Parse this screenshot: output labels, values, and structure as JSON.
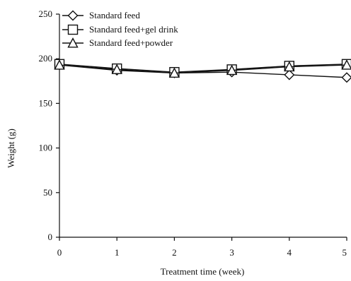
{
  "chart_data": {
    "type": "line",
    "title": "",
    "xlabel": "Treatment time (week)",
    "ylabel": "Weight (g)",
    "x": [
      0,
      1,
      2,
      3,
      4,
      5
    ],
    "xlim": [
      0,
      5
    ],
    "ylim": [
      0,
      250
    ],
    "x_ticks": [
      "0",
      "1",
      "2",
      "3",
      "4",
      "5"
    ],
    "y_ticks": [
      "0",
      "50",
      "100",
      "150",
      "200",
      "250"
    ],
    "grid": false,
    "legend_position": "top-left",
    "colors": {
      "series": "#111111",
      "axis": "#111111",
      "marker_fill": "#ffffff"
    },
    "series": [
      {
        "name": "Standard feed",
        "marker": "diamond",
        "values": [
          193,
          187,
          184,
          185,
          182,
          179
        ]
      },
      {
        "name": "Standard feed+gel drink",
        "marker": "square",
        "values": [
          194,
          189,
          185,
          188,
          192,
          194
        ]
      },
      {
        "name": "Standard feed+powder",
        "marker": "triangle",
        "values": [
          193,
          188,
          184,
          187,
          191,
          193
        ]
      }
    ]
  }
}
